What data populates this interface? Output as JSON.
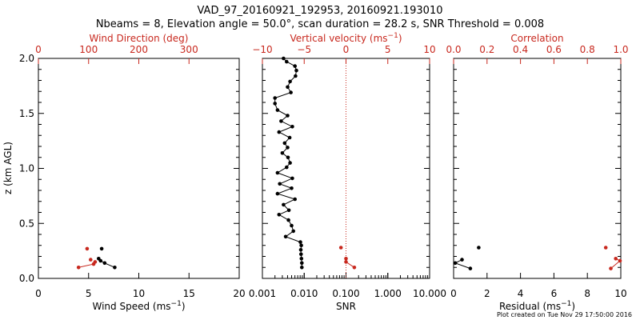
{
  "header": {
    "title": "VAD_97_20160921_192953, 20160921.193010",
    "subtitle": "Nbeams = 8, Elevation angle = 50.0°, scan duration = 28.2 s, SNR Threshold = 0.008"
  },
  "footer": {
    "note": "Plot created on Tue Nov 29 17:50:00 2016"
  },
  "colors": {
    "primary": "#000000",
    "secondary": "#c8281e"
  },
  "chart_data": [
    {
      "type": "scatter",
      "panel": "wind",
      "title": "",
      "ylabel": "z (km AGL)",
      "ylim": [
        0,
        2
      ],
      "yticks": [
        "0.0",
        "0.5",
        "1.0",
        "1.5",
        "2.0"
      ],
      "bottom_axis": {
        "label": "Wind Speed (ms",
        "label_exp": "−1",
        "label_end": ")",
        "range": [
          0,
          20
        ],
        "ticks": [
          "0",
          "5",
          "10",
          "15",
          "20"
        ]
      },
      "top_axis": {
        "label": "Wind Direction (deg)",
        "range": [
          0,
          400
        ],
        "ticks": [
          "0",
          "100",
          "200",
          "300"
        ]
      },
      "series": [
        {
          "name": "Wind Speed",
          "axis": "bottom",
          "color": "#000000",
          "x": [
            7.6,
            6.6,
            6.2,
            6.0,
            6.3
          ],
          "z": [
            0.1,
            0.14,
            0.16,
            0.18,
            0.27
          ],
          "connect": [
            0,
            1,
            2,
            3
          ]
        },
        {
          "name": "Wind Direction",
          "axis": "top",
          "color": "#c8281e",
          "x": [
            80,
            110,
            113,
            104,
            97
          ],
          "z": [
            0.1,
            0.13,
            0.15,
            0.17,
            0.27
          ],
          "connect": [
            0,
            1,
            2
          ]
        }
      ]
    },
    {
      "type": "line",
      "panel": "snr",
      "bottom_axis": {
        "label": "SNR",
        "scale": "log",
        "range": [
          0.001,
          10
        ],
        "ticks": [
          "0.001",
          "0.010",
          "0.100",
          "1.000",
          "10.000"
        ]
      },
      "top_axis": {
        "label": "Vertical velocity (ms",
        "label_exp": "−1",
        "label_end": ")",
        "range": [
          -10,
          10
        ],
        "ticks": [
          "−10",
          "−5",
          "0",
          "5",
          "10"
        ]
      },
      "reference_line": {
        "axis": "top",
        "value": 0
      },
      "series": [
        {
          "name": "SNR",
          "axis": "bottom",
          "color": "#000000",
          "x": [
            0.0088,
            0.0088,
            0.0086,
            0.0084,
            0.0083,
            0.0085,
            0.0081,
            0.0036,
            0.0055,
            0.005,
            0.0042,
            0.0025,
            0.0043,
            0.0032,
            0.006,
            0.0023,
            0.005,
            0.0026,
            0.0052,
            0.0023,
            0.0038,
            0.0046,
            0.0041,
            0.003,
            0.004,
            0.0034,
            0.0045,
            0.0025,
            0.0052,
            0.0028,
            0.004,
            0.0023,
            0.002,
            0.002,
            0.0048,
            0.004,
            0.0046,
            0.0062,
            0.0065,
            0.006,
            0.0038,
            0.0032
          ],
          "z": [
            0.1,
            0.14,
            0.18,
            0.22,
            0.26,
            0.3,
            0.33,
            0.38,
            0.43,
            0.48,
            0.53,
            0.58,
            0.62,
            0.67,
            0.72,
            0.77,
            0.82,
            0.86,
            0.91,
            0.96,
            1.01,
            1.05,
            1.1,
            1.14,
            1.19,
            1.23,
            1.28,
            1.33,
            1.38,
            1.43,
            1.48,
            1.53,
            1.59,
            1.64,
            1.69,
            1.74,
            1.79,
            1.84,
            1.89,
            1.93,
            1.97,
            2.0
          ]
        },
        {
          "name": "Vertical velocity",
          "axis": "top",
          "color": "#c8281e",
          "x": [
            1.0,
            0.0,
            0.0,
            -0.6
          ],
          "z": [
            0.1,
            0.15,
            0.18,
            0.28
          ],
          "connect": [
            0,
            1,
            2
          ]
        }
      ]
    },
    {
      "type": "scatter",
      "panel": "residual",
      "bottom_axis": {
        "label": "Residual (ms",
        "label_exp": "−1",
        "label_end": ")",
        "range": [
          0,
          10
        ],
        "ticks": [
          "0",
          "2",
          "4",
          "6",
          "8",
          "10"
        ]
      },
      "top_axis": {
        "label": "Correlation",
        "range": [
          0,
          1
        ],
        "ticks": [
          "0.0",
          "0.2",
          "0.4",
          "0.6",
          "0.8",
          "1.0"
        ]
      },
      "series": [
        {
          "name": "Residual",
          "axis": "bottom",
          "color": "#000000",
          "x": [
            1.0,
            0.1,
            0.5,
            1.5
          ],
          "z": [
            0.09,
            0.14,
            0.17,
            0.28
          ],
          "connect": [
            0,
            1,
            2
          ]
        },
        {
          "name": "Correlation",
          "axis": "top",
          "color": "#c8281e",
          "x": [
            0.94,
            0.995,
            0.97,
            0.91
          ],
          "z": [
            0.09,
            0.16,
            0.18,
            0.28
          ],
          "connect": [
            0,
            1,
            2
          ]
        }
      ]
    }
  ]
}
